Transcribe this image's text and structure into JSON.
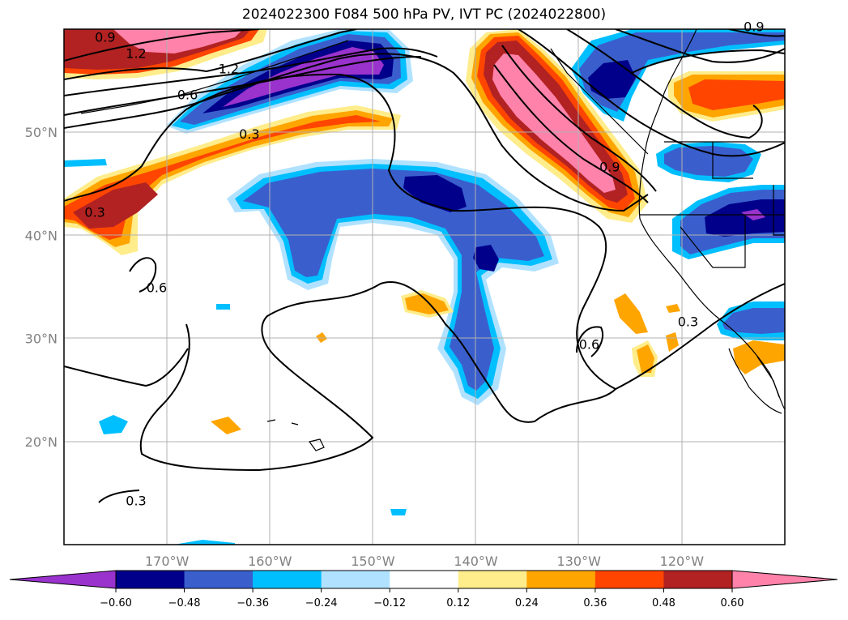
{
  "title": "2024022300 F084 500 hPa PV, IVT PC (2024022800)",
  "map": {
    "extent": {
      "lon_min": -180,
      "lon_max": -110,
      "lat_min": 10,
      "lat_max": 60
    },
    "lat_ticks": [
      {
        "value": 20,
        "label": "20°N"
      },
      {
        "value": 30,
        "label": "30°N"
      },
      {
        "value": 40,
        "label": "40°N"
      },
      {
        "value": 50,
        "label": "50°N"
      }
    ],
    "lon_ticks": [
      {
        "value": -170,
        "label": "170°W"
      },
      {
        "value": -160,
        "label": "160°W"
      },
      {
        "value": -150,
        "label": "150°W"
      },
      {
        "value": -140,
        "label": "140°W"
      },
      {
        "value": -130,
        "label": "130°W"
      },
      {
        "value": -120,
        "label": "120°W"
      }
    ],
    "contour_labels": [
      {
        "text": "0.9",
        "lon": -176,
        "lat": 58.8
      },
      {
        "text": "1.2",
        "lon": -173,
        "lat": 57.2
      },
      {
        "text": "1.2",
        "lon": -164,
        "lat": 55.7
      },
      {
        "text": "0.6",
        "lon": -168,
        "lat": 53.2
      },
      {
        "text": "0.3",
        "lon": -162,
        "lat": 49.4
      },
      {
        "text": "0.3",
        "lon": -177,
        "lat": 41.8
      },
      {
        "text": "0.6",
        "lon": -171,
        "lat": 34.5
      },
      {
        "text": "0.3",
        "lon": -173,
        "lat": 13.8
      },
      {
        "text": "0.9",
        "lon": -127,
        "lat": 46.2
      },
      {
        "text": "0.6",
        "lon": -129,
        "lat": 29
      },
      {
        "text": "0.3",
        "lon": -119.4,
        "lat": 31.2
      },
      {
        "text": "0.9",
        "lon": -113,
        "lat": 59.8
      }
    ]
  },
  "colorbar": {
    "ticks": [
      "-0.60",
      "-0.48",
      "-0.36",
      "-0.24",
      "-0.12",
      "0.12",
      "0.24",
      "0.36",
      "0.48",
      "0.60"
    ],
    "colors": [
      "#9a32cd",
      "#00008b",
      "#3a5fcd",
      "#00bfff",
      "#b0e2ff",
      "#ffffff",
      "#ffec8b",
      "#ffa500",
      "#ff4500",
      "#b22222",
      "#ff82ab",
      "#ff82ab"
    ]
  }
}
